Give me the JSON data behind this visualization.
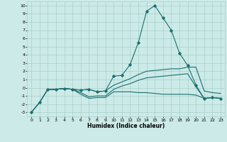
{
  "xlabel": "Humidex (Indice chaleur)",
  "bg_color": "#cceae7",
  "grid_color": "#aacfcc",
  "line_color": "#1a7070",
  "xlim": [
    -0.5,
    23.5
  ],
  "ylim": [
    -3.5,
    10.5
  ],
  "xticks": [
    0,
    1,
    2,
    3,
    4,
    5,
    6,
    7,
    8,
    9,
    10,
    11,
    12,
    13,
    14,
    15,
    16,
    17,
    18,
    19,
    20,
    21,
    22,
    23
  ],
  "yticks": [
    -3,
    -2,
    -1,
    0,
    1,
    2,
    3,
    4,
    5,
    6,
    7,
    8,
    9,
    10
  ],
  "line1_x": [
    0,
    1,
    2,
    3,
    4,
    5,
    6,
    7,
    8,
    9,
    10,
    11,
    12,
    13,
    14,
    15,
    16,
    17,
    18,
    19,
    20,
    21,
    22,
    23
  ],
  "line1_y": [
    -3.0,
    -1.8,
    -0.2,
    -0.2,
    -0.1,
    -0.2,
    -0.3,
    -0.2,
    -0.5,
    -0.4,
    1.4,
    1.5,
    2.8,
    5.5,
    9.3,
    10.0,
    8.5,
    7.0,
    4.2,
    2.7,
    0.3,
    -1.3,
    -1.2,
    -1.3
  ],
  "line2_x": [
    0,
    1,
    2,
    3,
    4,
    5,
    6,
    7,
    8,
    9,
    10,
    11,
    12,
    13,
    14,
    15,
    16,
    17,
    18,
    19,
    20,
    21,
    22,
    23
  ],
  "line2_y": [
    -3.0,
    -1.8,
    -0.2,
    -0.2,
    -0.1,
    -0.2,
    -0.3,
    -0.2,
    -0.5,
    -0.4,
    0.3,
    0.7,
    1.1,
    1.6,
    2.0,
    2.1,
    2.2,
    2.3,
    2.3,
    2.5,
    2.5,
    -0.4,
    -0.6,
    -0.7
  ],
  "line3_x": [
    0,
    1,
    2,
    3,
    4,
    5,
    6,
    7,
    8,
    9,
    10,
    11,
    12,
    13,
    14,
    15,
    16,
    17,
    18,
    19,
    20,
    21,
    22,
    23
  ],
  "line3_y": [
    -3.0,
    -1.8,
    -0.2,
    -0.2,
    -0.1,
    -0.2,
    -0.8,
    -1.3,
    -1.2,
    -1.2,
    -0.5,
    -0.5,
    -0.5,
    -0.6,
    -0.6,
    -0.7,
    -0.8,
    -0.8,
    -0.8,
    -0.8,
    -0.9,
    -1.3,
    -1.2,
    -1.3
  ],
  "line4_x": [
    2,
    3,
    4,
    5,
    6,
    7,
    8,
    9,
    10,
    11,
    12,
    13,
    14,
    15,
    16,
    17,
    18,
    19,
    20,
    21,
    22,
    23
  ],
  "line4_y": [
    -0.2,
    -0.2,
    -0.1,
    -0.2,
    -0.6,
    -1.1,
    -1.0,
    -1.0,
    -0.2,
    0.2,
    0.5,
    0.9,
    1.2,
    1.3,
    1.4,
    1.5,
    1.6,
    1.7,
    0.1,
    -1.3,
    -1.2,
    -1.3
  ]
}
